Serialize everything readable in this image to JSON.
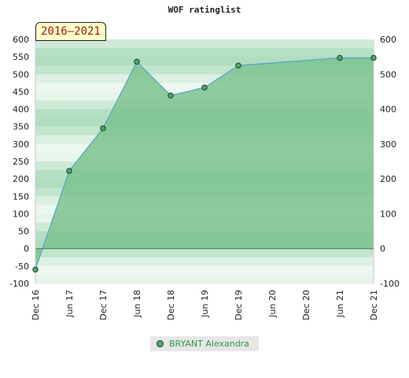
{
  "chart_data": {
    "type": "area",
    "title": "WOF ratinglist",
    "period_badge": "2016–2021",
    "xlabel": "",
    "ylabel": "",
    "x_ticks": [
      "Dec 16",
      "Jun 17",
      "Dec 17",
      "Jun 18",
      "Dec 18",
      "Jun 19",
      "Dec 19",
      "Jun 20",
      "Dec 20",
      "Jun 21",
      "Dec 21"
    ],
    "y_ticks_left": [
      "600",
      "550",
      "500",
      "450",
      "400",
      "350",
      "300",
      "250",
      "200",
      "150",
      "100",
      "50",
      "0",
      "-50",
      "-100"
    ],
    "y_ticks_right": [
      "600",
      "500",
      "400",
      "300",
      "200",
      "100",
      "0",
      "-100"
    ],
    "ylim": [
      -100,
      600
    ],
    "series": [
      {
        "name": "BRYANT Alexandra",
        "points": [
          {
            "x": "Dec 16",
            "y": -60
          },
          {
            "x": "Jun 17",
            "y": 223
          },
          {
            "x": "Dec 17",
            "y": 345
          },
          {
            "x": "Jun 18",
            "y": 536
          },
          {
            "x": "Dec 18",
            "y": 439
          },
          {
            "x": "Jun 19",
            "y": 462
          },
          {
            "x": "Dec 19",
            "y": 525
          },
          {
            "x": "Jun 21",
            "y": 547
          },
          {
            "x": "Dec 21",
            "y": 547
          }
        ]
      }
    ],
    "grid": true,
    "legend_position": "bottom",
    "colors": {
      "fill": "#7cc391",
      "line": "#5aa0c8",
      "marker": "#4fa86a",
      "band_light": "#eef8f1",
      "band_dark": "#a4d8b4"
    }
  }
}
